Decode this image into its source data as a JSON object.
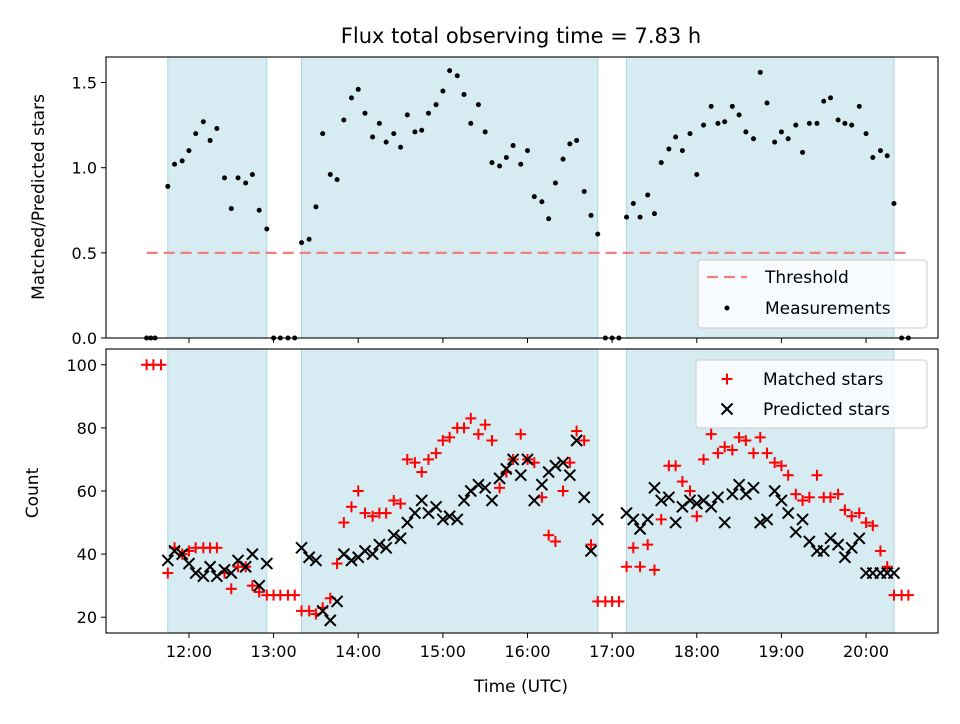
{
  "chart_data": {
    "type": "scatter",
    "title": "Flux total observing time = 7.83 h",
    "xlabel": "Time (UTC)",
    "x_ticks": [
      "12:00",
      "13:00",
      "14:00",
      "15:00",
      "16:00",
      "17:00",
      "18:00",
      "19:00",
      "20:00"
    ],
    "x_tick_hours": [
      12,
      13,
      14,
      15,
      16,
      17,
      18,
      19,
      20
    ],
    "xlim_hours": [
      11.02,
      20.85
    ],
    "shaded_intervals_hours": [
      [
        11.75,
        12.92
      ],
      [
        13.33,
        16.83
      ],
      [
        17.17,
        20.33
      ]
    ],
    "shade_color": "#add8e6",
    "top_panel": {
      "ylabel": "Matched/Predicted stars",
      "ylim": [
        0,
        1.65
      ],
      "y_ticks": [
        "0.0",
        "0.5",
        "1.0",
        "1.5"
      ],
      "y_tick_values": [
        0,
        0.5,
        1.0,
        1.5
      ],
      "threshold": {
        "name": "Threshold",
        "value": 0.5,
        "x_range_hours": [
          11.5,
          20.5
        ],
        "color": "#f08080"
      },
      "measurements": {
        "name": "Measurements",
        "color": "#000000",
        "x": [
          11.5,
          11.55,
          11.6,
          11.75,
          11.83,
          11.92,
          12.0,
          12.08,
          12.17,
          12.25,
          12.33,
          12.42,
          12.5,
          12.58,
          12.67,
          12.75,
          12.83,
          12.92,
          13.0,
          13.08,
          13.17,
          13.25,
          13.33,
          13.42,
          13.5,
          13.58,
          13.67,
          13.75,
          13.83,
          13.92,
          14.0,
          14.08,
          14.17,
          14.25,
          14.33,
          14.42,
          14.5,
          14.58,
          14.67,
          14.75,
          14.83,
          14.92,
          15.0,
          15.08,
          15.17,
          15.25,
          15.33,
          15.42,
          15.5,
          15.58,
          15.67,
          15.75,
          15.83,
          15.92,
          16.0,
          16.08,
          16.17,
          16.25,
          16.33,
          16.42,
          16.5,
          16.58,
          16.67,
          16.75,
          16.83,
          16.92,
          17.0,
          17.08,
          17.17,
          17.25,
          17.33,
          17.42,
          17.5,
          17.58,
          17.67,
          17.75,
          17.83,
          17.92,
          18.0,
          18.08,
          18.17,
          18.25,
          18.33,
          18.42,
          18.5,
          18.58,
          18.67,
          18.75,
          18.83,
          18.92,
          19.0,
          19.08,
          19.17,
          19.25,
          19.33,
          19.42,
          19.5,
          19.58,
          19.67,
          19.75,
          19.83,
          19.92,
          20.0,
          20.08,
          20.17,
          20.25,
          20.33,
          20.42,
          20.5
        ],
        "y": [
          0,
          0,
          0,
          0.89,
          1.02,
          1.04,
          1.1,
          1.2,
          1.27,
          1.16,
          1.23,
          0.94,
          0.76,
          0.94,
          0.91,
          0.96,
          0.75,
          0.64,
          0,
          0,
          0,
          0,
          0.56,
          0.58,
          0.77,
          1.2,
          0.96,
          0.93,
          1.28,
          1.41,
          1.46,
          1.32,
          1.18,
          1.26,
          1.15,
          1.2,
          1.12,
          1.31,
          1.21,
          1.22,
          1.32,
          1.37,
          1.45,
          1.57,
          1.54,
          1.43,
          1.26,
          1.37,
          1.21,
          1.03,
          1.01,
          1.06,
          1.13,
          1.02,
          1.1,
          0.83,
          0.8,
          0.7,
          0.91,
          1.05,
          1.14,
          1.16,
          0.86,
          0.72,
          0.61,
          0,
          0,
          0,
          0.71,
          0.79,
          0.71,
          0.84,
          0.73,
          1.03,
          1.11,
          1.18,
          1.1,
          1.2,
          0.96,
          1.25,
          1.36,
          1.26,
          1.27,
          1.36,
          1.31,
          1.21,
          1.17,
          1.56,
          1.38,
          1.15,
          1.21,
          1.17,
          1.25,
          1.09,
          1.26,
          1.26,
          1.39,
          1.41,
          1.28,
          1.26,
          1.25,
          1.36,
          1.2,
          1.06,
          1.1,
          1.07,
          0.79,
          0,
          0
        ]
      }
    },
    "bottom_panel": {
      "ylabel": "Count",
      "ylim": [
        15,
        105
      ],
      "y_ticks": [
        "20",
        "40",
        "60",
        "80",
        "100"
      ],
      "y_tick_values": [
        20,
        40,
        60,
        80,
        100
      ],
      "series": [
        {
          "name": "Matched stars",
          "marker": "+",
          "color": "#ff0000",
          "x": [
            11.5,
            11.58,
            11.67,
            11.75,
            11.83,
            11.92,
            12.0,
            12.08,
            12.17,
            12.25,
            12.33,
            12.42,
            12.5,
            12.58,
            12.67,
            12.75,
            12.83,
            12.92,
            13.0,
            13.08,
            13.17,
            13.25,
            13.33,
            13.42,
            13.5,
            13.58,
            13.67,
            13.75,
            13.83,
            13.92,
            14.0,
            14.08,
            14.17,
            14.25,
            14.33,
            14.42,
            14.5,
            14.58,
            14.67,
            14.75,
            14.83,
            14.92,
            15.0,
            15.08,
            15.17,
            15.25,
            15.33,
            15.42,
            15.5,
            15.58,
            15.67,
            15.75,
            15.83,
            15.92,
            16.0,
            16.08,
            16.17,
            16.25,
            16.33,
            16.42,
            16.5,
            16.58,
            16.67,
            16.75,
            16.83,
            16.92,
            17.0,
            17.08,
            17.17,
            17.25,
            17.33,
            17.42,
            17.5,
            17.58,
            17.67,
            17.75,
            17.83,
            17.92,
            18.0,
            18.08,
            18.17,
            18.25,
            18.33,
            18.42,
            18.5,
            18.58,
            18.67,
            18.75,
            18.83,
            18.92,
            19.0,
            19.08,
            19.17,
            19.25,
            19.33,
            19.42,
            19.5,
            19.58,
            19.67,
            19.75,
            19.83,
            19.92,
            20.0,
            20.08,
            20.17,
            20.25,
            20.33,
            20.42,
            20.5
          ],
          "y": [
            100,
            100,
            100,
            34,
            42,
            40,
            41,
            42,
            42,
            42,
            42,
            34,
            29,
            36,
            36,
            30,
            28,
            27,
            27,
            27,
            27,
            27,
            22,
            22,
            21,
            23,
            26,
            37,
            50,
            55,
            60,
            53,
            52,
            53,
            53,
            57,
            56,
            70,
            69,
            66,
            70,
            72,
            76,
            77,
            80,
            80,
            83,
            78,
            81,
            76,
            61,
            66,
            70,
            78,
            70,
            69,
            58,
            46,
            44,
            60,
            69,
            79,
            76,
            43,
            25,
            25,
            25,
            25,
            36,
            42,
            36,
            43,
            35,
            51,
            68,
            68,
            63,
            60,
            52,
            70,
            78,
            72,
            74,
            73,
            77,
            76,
            72,
            77,
            72,
            69,
            68,
            65,
            59,
            57,
            58,
            65,
            58,
            58,
            59,
            54,
            52,
            53,
            50,
            49,
            41,
            36,
            27,
            27,
            27
          ]
        },
        {
          "name": "Predicted stars",
          "marker": "x",
          "color": "#000000",
          "x": [
            11.75,
            11.83,
            11.92,
            12.0,
            12.08,
            12.17,
            12.25,
            12.33,
            12.42,
            12.5,
            12.58,
            12.67,
            12.75,
            12.83,
            12.92,
            13.33,
            13.42,
            13.5,
            13.58,
            13.67,
            13.75,
            13.83,
            13.92,
            14.0,
            14.08,
            14.17,
            14.25,
            14.33,
            14.42,
            14.5,
            14.58,
            14.67,
            14.75,
            14.83,
            14.92,
            15.0,
            15.08,
            15.17,
            15.25,
            15.33,
            15.42,
            15.5,
            15.58,
            15.67,
            15.75,
            15.83,
            15.92,
            16.0,
            16.08,
            16.17,
            16.25,
            16.33,
            16.42,
            16.5,
            16.58,
            16.67,
            16.75,
            16.83,
            17.17,
            17.25,
            17.33,
            17.42,
            17.5,
            17.58,
            17.67,
            17.75,
            17.83,
            17.92,
            18.0,
            18.08,
            18.17,
            18.25,
            18.33,
            18.42,
            18.5,
            18.58,
            18.67,
            18.75,
            18.83,
            18.92,
            19.0,
            19.08,
            19.17,
            19.25,
            19.33,
            19.42,
            19.5,
            19.58,
            19.67,
            19.75,
            19.83,
            19.92,
            20.0,
            20.08,
            20.17,
            20.25,
            20.33
          ],
          "y": [
            38,
            41,
            40,
            37,
            34,
            33,
            36,
            33,
            35,
            34,
            38,
            36,
            40,
            30,
            37,
            42,
            39,
            38,
            22,
            19,
            25,
            40,
            38,
            39,
            41,
            40,
            43,
            42,
            46,
            45,
            50,
            53,
            57,
            53,
            55,
            51,
            52,
            51,
            57,
            60,
            62,
            61,
            57,
            64,
            67,
            70,
            65,
            70,
            57,
            62,
            66,
            68,
            69,
            65,
            76,
            58,
            41,
            51,
            53,
            51,
            48,
            51,
            61,
            57,
            58,
            50,
            55,
            57,
            56,
            57,
            55,
            58,
            50,
            59,
            62,
            59,
            61,
            50,
            51,
            60,
            57,
            53,
            47,
            51,
            44,
            41,
            41,
            45,
            43,
            39,
            42,
            45,
            34,
            34,
            34,
            34,
            34
          ]
        }
      ]
    }
  }
}
